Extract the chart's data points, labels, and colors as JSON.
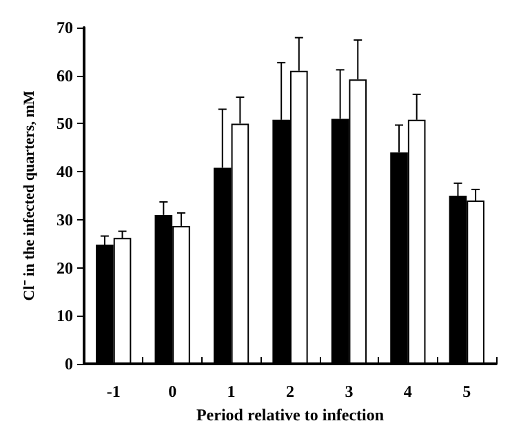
{
  "chart_data": {
    "type": "bar",
    "xlabel": "Period relative to infection",
    "ylabel": "Cl⁻ in the infected quarters, mM",
    "categories": [
      "-1",
      "0",
      "1",
      "2",
      "3",
      "4",
      "5"
    ],
    "series": [
      {
        "color": "#000000",
        "values": [
          24.8,
          31,
          40.8,
          50.8,
          51,
          44,
          35
        ],
        "errors": [
          [
            24.8,
            26.6
          ],
          [
            31,
            33.7
          ],
          [
            40.8,
            53
          ],
          [
            50.8,
            62.7
          ],
          [
            51,
            61.2
          ],
          [
            44,
            49.7
          ],
          [
            35,
            37.6
          ]
        ]
      },
      {
        "color": "#ffffff",
        "values": [
          26.2,
          28.7,
          50,
          61,
          59.2,
          50.8,
          34
        ],
        "errors": [
          [
            26.2,
            27.6
          ],
          [
            28.7,
            31.4
          ],
          [
            50,
            55.5
          ],
          [
            61,
            67.9
          ],
          [
            59.2,
            67.4
          ],
          [
            50.8,
            56.1
          ],
          [
            34,
            36.3
          ]
        ]
      }
    ],
    "ylim": [
      0,
      70
    ],
    "yticks": [
      0,
      10,
      20,
      30,
      40,
      50,
      60,
      70
    ],
    "grid": false
  }
}
